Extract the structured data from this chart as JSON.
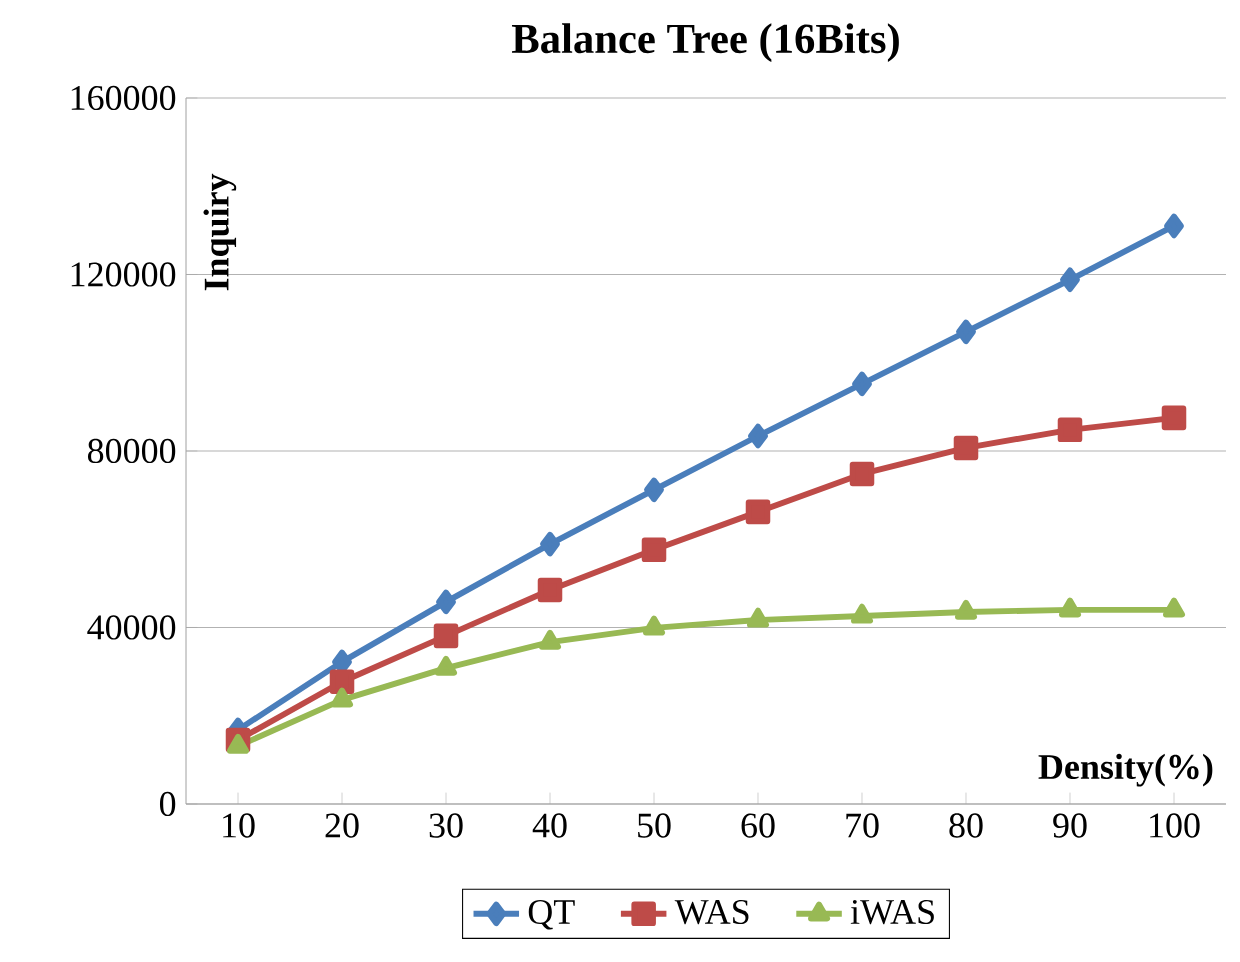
{
  "chart_data": {
    "type": "line",
    "title": "Balance Tree (16Bits)",
    "xlabel": "Density(%)",
    "ylabel": "Inquiry",
    "categories": [
      "10",
      "20",
      "30",
      "40",
      "50",
      "60",
      "70",
      "80",
      "90",
      "100"
    ],
    "series": [
      {
        "name": "QT",
        "color": "#4a7ebb",
        "marker": "diamond",
        "values": [
          16800,
          32200,
          45800,
          58900,
          71200,
          83400,
          95200,
          107000,
          118800,
          131000
        ]
      },
      {
        "name": "WAS",
        "color": "#be4b48",
        "marker": "square",
        "values": [
          14500,
          27700,
          38100,
          48500,
          57600,
          66200,
          74800,
          80700,
          84800,
          87500
        ]
      },
      {
        "name": "iWAS",
        "color": "#98b954",
        "marker": "triangle",
        "values": [
          13100,
          23600,
          30800,
          36700,
          39900,
          41700,
          42600,
          43500,
          44000,
          44000
        ]
      }
    ],
    "ylim": [
      0,
      160000
    ],
    "yticks": [
      0,
      40000,
      80000,
      120000,
      160000
    ],
    "grid": "y",
    "legend": "bottom",
    "line_style": "solid"
  }
}
